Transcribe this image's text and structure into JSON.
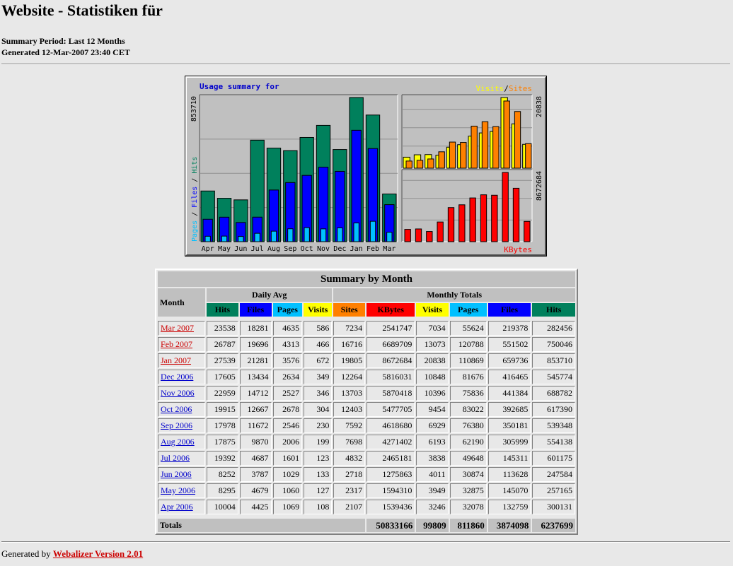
{
  "page": {
    "title": "Website - Statistiken für",
    "summary_period": "Summary Period: Last 12 Months",
    "generated": "Generated 12-Mar-2007 23:40 CET"
  },
  "colors": {
    "hits": "#00805c",
    "files": "#0000ff",
    "pages": "#00c0ff",
    "visits": "#ffff00",
    "sites": "#ff8000",
    "kbytes": "#ff0000",
    "link_current": "#cc0000",
    "link": "#0000cc"
  },
  "chart_data": [
    {
      "type": "bar",
      "title": "Usage summary for",
      "categories": [
        "Apr",
        "May",
        "Jun",
        "Jul",
        "Aug",
        "Sep",
        "Oct",
        "Nov",
        "Dec",
        "Jan",
        "Feb",
        "Mar"
      ],
      "ylabel": "Pages / Files / Hits",
      "ymax_label": "853710",
      "ylim": [
        0,
        853710
      ],
      "series": [
        {
          "name": "Hits",
          "values": [
            300131,
            257165,
            247584,
            601175,
            554138,
            539348,
            617390,
            688782,
            545774,
            853710,
            750046,
            282456
          ]
        },
        {
          "name": "Files",
          "values": [
            132759,
            145070,
            113628,
            145311,
            305999,
            350181,
            392685,
            441384,
            416465,
            659736,
            551502,
            219378
          ]
        },
        {
          "name": "Pages",
          "values": [
            32078,
            32875,
            30874,
            49648,
            62190,
            76380,
            83022,
            75836,
            81676,
            110869,
            120788,
            55624
          ]
        }
      ]
    },
    {
      "type": "bar",
      "legend": [
        "Visits",
        "Sites"
      ],
      "ymax_label": "20838",
      "ylim": [
        0,
        20838
      ],
      "series": [
        {
          "name": "Visits",
          "values": [
            3246,
            3949,
            4011,
            3838,
            6193,
            6929,
            9454,
            10396,
            10848,
            20838,
            13073,
            7034
          ]
        },
        {
          "name": "Sites",
          "values": [
            2107,
            2317,
            2718,
            4832,
            7698,
            7592,
            12403,
            13703,
            12264,
            19805,
            16716,
            7234
          ]
        }
      ]
    },
    {
      "type": "bar",
      "legend": [
        "KBytes"
      ],
      "ymax_label": "8672684",
      "ylim": [
        0,
        8672684
      ],
      "series": [
        {
          "name": "KBytes",
          "values": [
            1539436,
            1594310,
            1275863,
            2465181,
            4271402,
            4618680,
            5477705,
            5870418,
            5816031,
            8672684,
            6689709,
            2541747
          ]
        }
      ]
    }
  ],
  "table": {
    "caption": "Summary by Month",
    "month_header": "Month",
    "daily_avg_header": "Daily Avg",
    "monthly_totals_header": "Monthly Totals",
    "daily_cols": [
      "Hits",
      "Files",
      "Pages",
      "Visits"
    ],
    "monthly_cols": [
      "Sites",
      "KBytes",
      "Visits",
      "Pages",
      "Files",
      "Hits"
    ],
    "rows": [
      {
        "month": "Mar 2007",
        "current": true,
        "d_hits": "23538",
        "d_files": "18281",
        "d_pages": "4635",
        "d_visits": "586",
        "sites": "7234",
        "kbytes": "2541747",
        "visits": "7034",
        "pages": "55624",
        "files": "219378",
        "hits": "282456"
      },
      {
        "month": "Feb 2007",
        "current": true,
        "d_hits": "26787",
        "d_files": "19696",
        "d_pages": "4313",
        "d_visits": "466",
        "sites": "16716",
        "kbytes": "6689709",
        "visits": "13073",
        "pages": "120788",
        "files": "551502",
        "hits": "750046"
      },
      {
        "month": "Jan 2007",
        "current": true,
        "d_hits": "27539",
        "d_files": "21281",
        "d_pages": "3576",
        "d_visits": "672",
        "sites": "19805",
        "kbytes": "8672684",
        "visits": "20838",
        "pages": "110869",
        "files": "659736",
        "hits": "853710"
      },
      {
        "month": "Dec 2006",
        "current": false,
        "d_hits": "17605",
        "d_files": "13434",
        "d_pages": "2634",
        "d_visits": "349",
        "sites": "12264",
        "kbytes": "5816031",
        "visits": "10848",
        "pages": "81676",
        "files": "416465",
        "hits": "545774"
      },
      {
        "month": "Nov 2006",
        "current": false,
        "d_hits": "22959",
        "d_files": "14712",
        "d_pages": "2527",
        "d_visits": "346",
        "sites": "13703",
        "kbytes": "5870418",
        "visits": "10396",
        "pages": "75836",
        "files": "441384",
        "hits": "688782"
      },
      {
        "month": "Oct 2006",
        "current": false,
        "d_hits": "19915",
        "d_files": "12667",
        "d_pages": "2678",
        "d_visits": "304",
        "sites": "12403",
        "kbytes": "5477705",
        "visits": "9454",
        "pages": "83022",
        "files": "392685",
        "hits": "617390"
      },
      {
        "month": "Sep 2006",
        "current": false,
        "d_hits": "17978",
        "d_files": "11672",
        "d_pages": "2546",
        "d_visits": "230",
        "sites": "7592",
        "kbytes": "4618680",
        "visits": "6929",
        "pages": "76380",
        "files": "350181",
        "hits": "539348"
      },
      {
        "month": "Aug 2006",
        "current": false,
        "d_hits": "17875",
        "d_files": "9870",
        "d_pages": "2006",
        "d_visits": "199",
        "sites": "7698",
        "kbytes": "4271402",
        "visits": "6193",
        "pages": "62190",
        "files": "305999",
        "hits": "554138"
      },
      {
        "month": "Jul 2006",
        "current": false,
        "d_hits": "19392",
        "d_files": "4687",
        "d_pages": "1601",
        "d_visits": "123",
        "sites": "4832",
        "kbytes": "2465181",
        "visits": "3838",
        "pages": "49648",
        "files": "145311",
        "hits": "601175"
      },
      {
        "month": "Jun 2006",
        "current": false,
        "d_hits": "8252",
        "d_files": "3787",
        "d_pages": "1029",
        "d_visits": "133",
        "sites": "2718",
        "kbytes": "1275863",
        "visits": "4011",
        "pages": "30874",
        "files": "113628",
        "hits": "247584"
      },
      {
        "month": "May 2006",
        "current": false,
        "d_hits": "8295",
        "d_files": "4679",
        "d_pages": "1060",
        "d_visits": "127",
        "sites": "2317",
        "kbytes": "1594310",
        "visits": "3949",
        "pages": "32875",
        "files": "145070",
        "hits": "257165"
      },
      {
        "month": "Apr 2006",
        "current": false,
        "d_hits": "10004",
        "d_files": "4425",
        "d_pages": "1069",
        "d_visits": "108",
        "sites": "2107",
        "kbytes": "1539436",
        "visits": "3246",
        "pages": "32078",
        "files": "132759",
        "hits": "300131"
      }
    ],
    "totals_label": "Totals",
    "totals": {
      "kbytes": "50833166",
      "visits": "99809",
      "pages": "811860",
      "files": "3874098",
      "hits": "6237699"
    }
  },
  "footer": {
    "prefix": "Generated by",
    "link": "Webalizer Version 2.01"
  }
}
